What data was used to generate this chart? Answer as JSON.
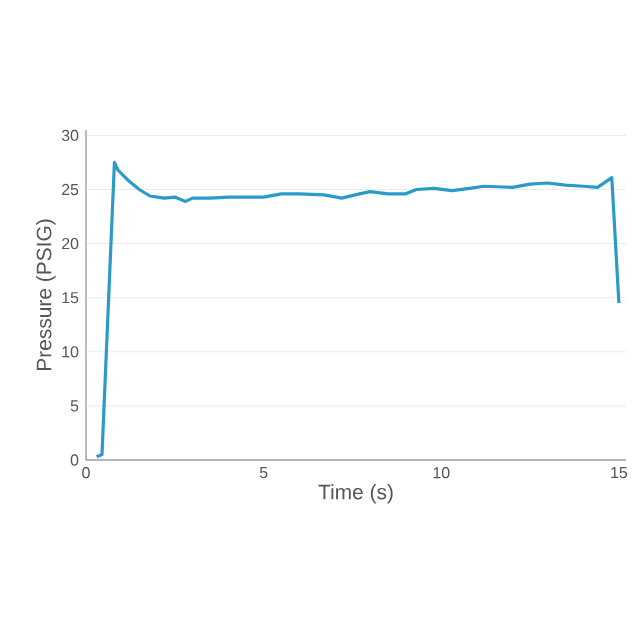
{
  "chart_data": {
    "type": "line",
    "xlabel": "Time (s)",
    "ylabel": "Pressure (PSIG)",
    "x": [
      0.3,
      0.45,
      0.8,
      0.9,
      1.2,
      1.5,
      1.8,
      2.2,
      2.5,
      2.8,
      3.0,
      3.5,
      4.0,
      5.0,
      5.5,
      6.0,
      6.7,
      7.2,
      7.7,
      8.0,
      8.5,
      9.0,
      9.3,
      9.8,
      10.3,
      10.8,
      11.2,
      12.0,
      12.5,
      13.0,
      13.5,
      14.0,
      14.4,
      14.8,
      15.0
    ],
    "series": [
      {
        "color": "#2a9ac9",
        "values": [
          0.3,
          0.5,
          27.5,
          26.8,
          25.8,
          25.0,
          24.4,
          24.2,
          24.3,
          23.9,
          24.2,
          24.2,
          24.3,
          24.3,
          24.6,
          24.6,
          24.5,
          24.2,
          24.6,
          24.8,
          24.6,
          24.6,
          25.0,
          25.1,
          24.9,
          25.1,
          25.3,
          25.2,
          25.5,
          25.6,
          25.4,
          25.3,
          25.2,
          26.1,
          14.5
        ]
      }
    ],
    "xlim": [
      0,
      15.2
    ],
    "ylim": [
      0,
      30.5
    ],
    "xticks": [
      0,
      5,
      10,
      15
    ],
    "yticks": [
      0,
      5,
      10,
      15,
      20,
      25,
      30
    ],
    "grid": "y",
    "marker": "none",
    "line_style": "solid"
  }
}
